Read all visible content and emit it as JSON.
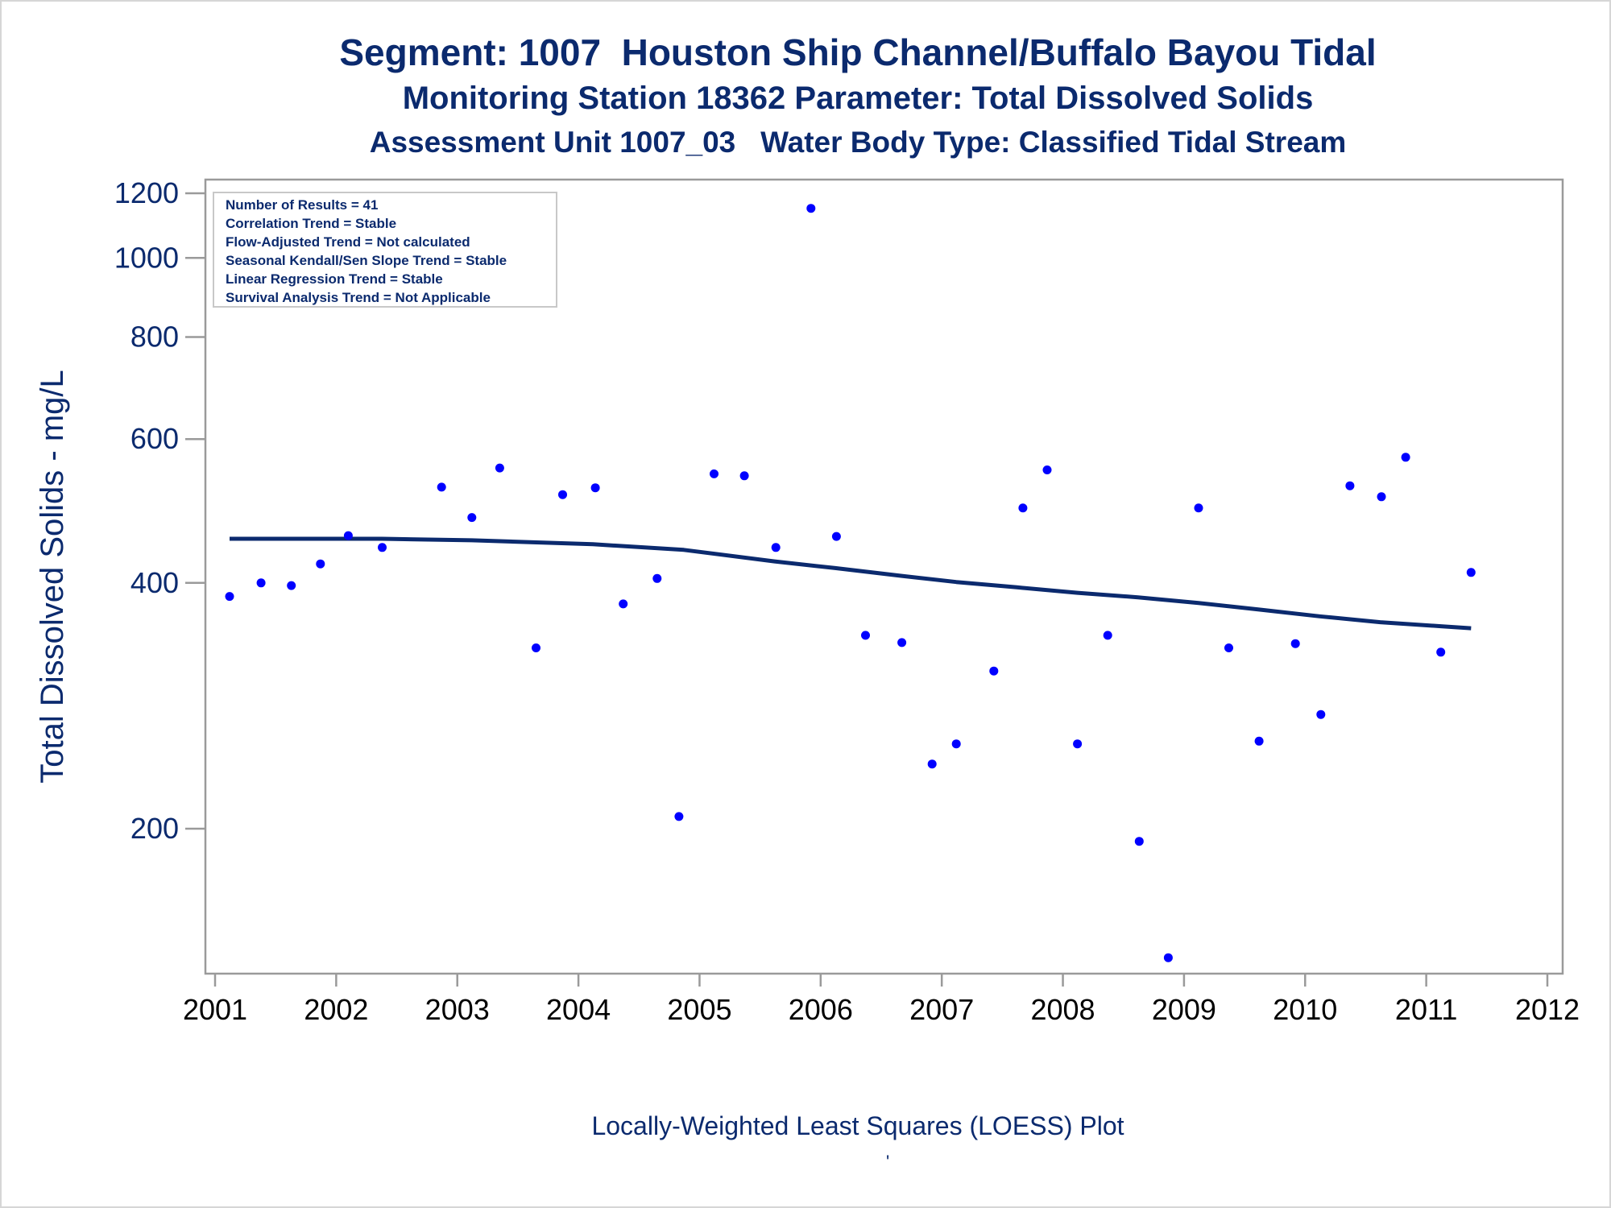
{
  "titles": {
    "line1": "Segment: 1007  Houston Ship Channel/Buffalo Bayou Tidal",
    "line2": "Monitoring Station 18362 Parameter: Total Dissolved Solids",
    "line3": "Assessment Unit 1007_03   Water Body Type: Classified Tidal Stream"
  },
  "footnote": "Locally-Weighted Least Squares (LOESS) Plot",
  "stray_mark": "'",
  "colors": {
    "text": "#0b2a6e",
    "points": "#0000ff",
    "loess": "#0b2a6e",
    "frame": "#9a9a9a"
  },
  "chart_data": {
    "type": "scatter",
    "title": "Segment: 1007  Houston Ship Channel/Buffalo Bayou Tidal",
    "xlabel": "",
    "ylabel": "Total Dissolved Solids - mg/L",
    "y_scale": "log",
    "xlim": [
      2001,
      2012
    ],
    "ylim": [
      133,
      1240
    ],
    "x_ticks": [
      2001,
      2002,
      2003,
      2004,
      2005,
      2006,
      2007,
      2008,
      2009,
      2010,
      2011,
      2012
    ],
    "y_ticks": [
      200,
      400,
      600,
      800,
      1000,
      1200
    ],
    "grid": false,
    "legend": "none",
    "inset_box": {
      "position": "top-left",
      "lines": [
        "Number of Results = 41",
        "Correlation Trend = Stable",
        "Flow-Adjusted Trend = Not calculated",
        "Seasonal Kendall/Sen Slope Trend = Stable",
        "Linear Regression Trend = Stable",
        "Survival Analysis Trend = Not Applicable"
      ]
    },
    "series": [
      {
        "kind": "points",
        "points": [
          [
            2001.12,
            385
          ],
          [
            2001.38,
            400
          ],
          [
            2001.63,
            397
          ],
          [
            2001.87,
            422
          ],
          [
            2002.1,
            457
          ],
          [
            2002.38,
            442
          ],
          [
            2002.87,
            524
          ],
          [
            2003.12,
            481
          ],
          [
            2003.35,
            553
          ],
          [
            2003.65,
            333
          ],
          [
            2003.87,
            513
          ],
          [
            2004.14,
            523
          ],
          [
            2004.37,
            377
          ],
          [
            2004.65,
            405
          ],
          [
            2004.83,
            207
          ],
          [
            2005.12,
            544
          ],
          [
            2005.37,
            541
          ],
          [
            2005.63,
            442
          ],
          [
            2005.92,
            1150
          ],
          [
            2006.13,
            456
          ],
          [
            2006.37,
            345
          ],
          [
            2006.67,
            338
          ],
          [
            2006.92,
            240
          ],
          [
            2007.12,
            254
          ],
          [
            2007.43,
            312
          ],
          [
            2007.67,
            494
          ],
          [
            2007.87,
            550
          ],
          [
            2008.12,
            254
          ],
          [
            2008.37,
            345
          ],
          [
            2008.63,
            193
          ],
          [
            2008.87,
            139
          ],
          [
            2009.12,
            494
          ],
          [
            2009.37,
            333
          ],
          [
            2009.62,
            256
          ],
          [
            2009.92,
            337
          ],
          [
            2010.13,
            276
          ],
          [
            2010.37,
            526
          ],
          [
            2010.63,
            510
          ],
          [
            2010.83,
            570
          ],
          [
            2011.12,
            329
          ],
          [
            2011.37,
            412
          ]
        ]
      },
      {
        "kind": "loess",
        "points": [
          [
            2001.12,
            453
          ],
          [
            2002.38,
            453
          ],
          [
            2003.12,
            451
          ],
          [
            2004.12,
            446
          ],
          [
            2004.87,
            439
          ],
          [
            2005.62,
            425
          ],
          [
            2006.12,
            417
          ],
          [
            2006.67,
            408
          ],
          [
            2007.12,
            401
          ],
          [
            2007.62,
            395
          ],
          [
            2008.12,
            389
          ],
          [
            2008.62,
            384
          ],
          [
            2009.12,
            378
          ],
          [
            2009.62,
            371
          ],
          [
            2010.12,
            364
          ],
          [
            2010.62,
            358
          ],
          [
            2011.12,
            354
          ],
          [
            2011.37,
            352
          ]
        ]
      }
    ]
  }
}
